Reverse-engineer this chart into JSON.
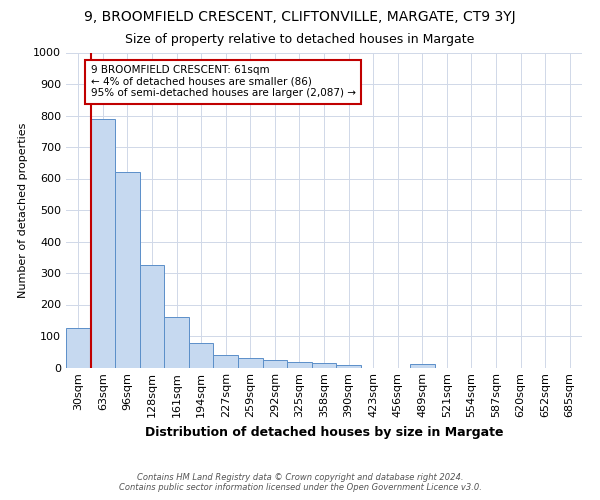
{
  "title": "9, BROOMFIELD CRESCENT, CLIFTONVILLE, MARGATE, CT9 3YJ",
  "subtitle": "Size of property relative to detached houses in Margate",
  "xlabel": "Distribution of detached houses by size in Margate",
  "ylabel": "Number of detached properties",
  "categories": [
    "30sqm",
    "63sqm",
    "96sqm",
    "128sqm",
    "161sqm",
    "194sqm",
    "227sqm",
    "259sqm",
    "292sqm",
    "325sqm",
    "358sqm",
    "390sqm",
    "423sqm",
    "456sqm",
    "489sqm",
    "521sqm",
    "554sqm",
    "587sqm",
    "620sqm",
    "652sqm",
    "685sqm"
  ],
  "values": [
    125,
    790,
    620,
    325,
    160,
    78,
    40,
    30,
    23,
    18,
    13,
    8,
    0,
    0,
    10,
    0,
    0,
    0,
    0,
    0,
    0
  ],
  "bar_color": "#c6d9f0",
  "bar_edge_color": "#5b8fc9",
  "vline_color": "#c00000",
  "vline_x_index": 1,
  "annotation_text": "9 BROOMFIELD CRESCENT: 61sqm\n← 4% of detached houses are smaller (86)\n95% of semi-detached houses are larger (2,087) →",
  "annotation_box_facecolor": "#ffffff",
  "annotation_box_edgecolor": "#c00000",
  "footer": "Contains HM Land Registry data © Crown copyright and database right 2024.\nContains public sector information licensed under the Open Government Licence v3.0.",
  "ylim": [
    0,
    1000
  ],
  "yticks": [
    0,
    100,
    200,
    300,
    400,
    500,
    600,
    700,
    800,
    900,
    1000
  ],
  "bg_color": "#ffffff",
  "grid_color": "#d0d8e8",
  "title_fontsize": 10,
  "subtitle_fontsize": 9,
  "xlabel_fontsize": 9,
  "ylabel_fontsize": 8,
  "tick_fontsize": 8,
  "annotation_fontsize": 7.5,
  "footer_fontsize": 6
}
